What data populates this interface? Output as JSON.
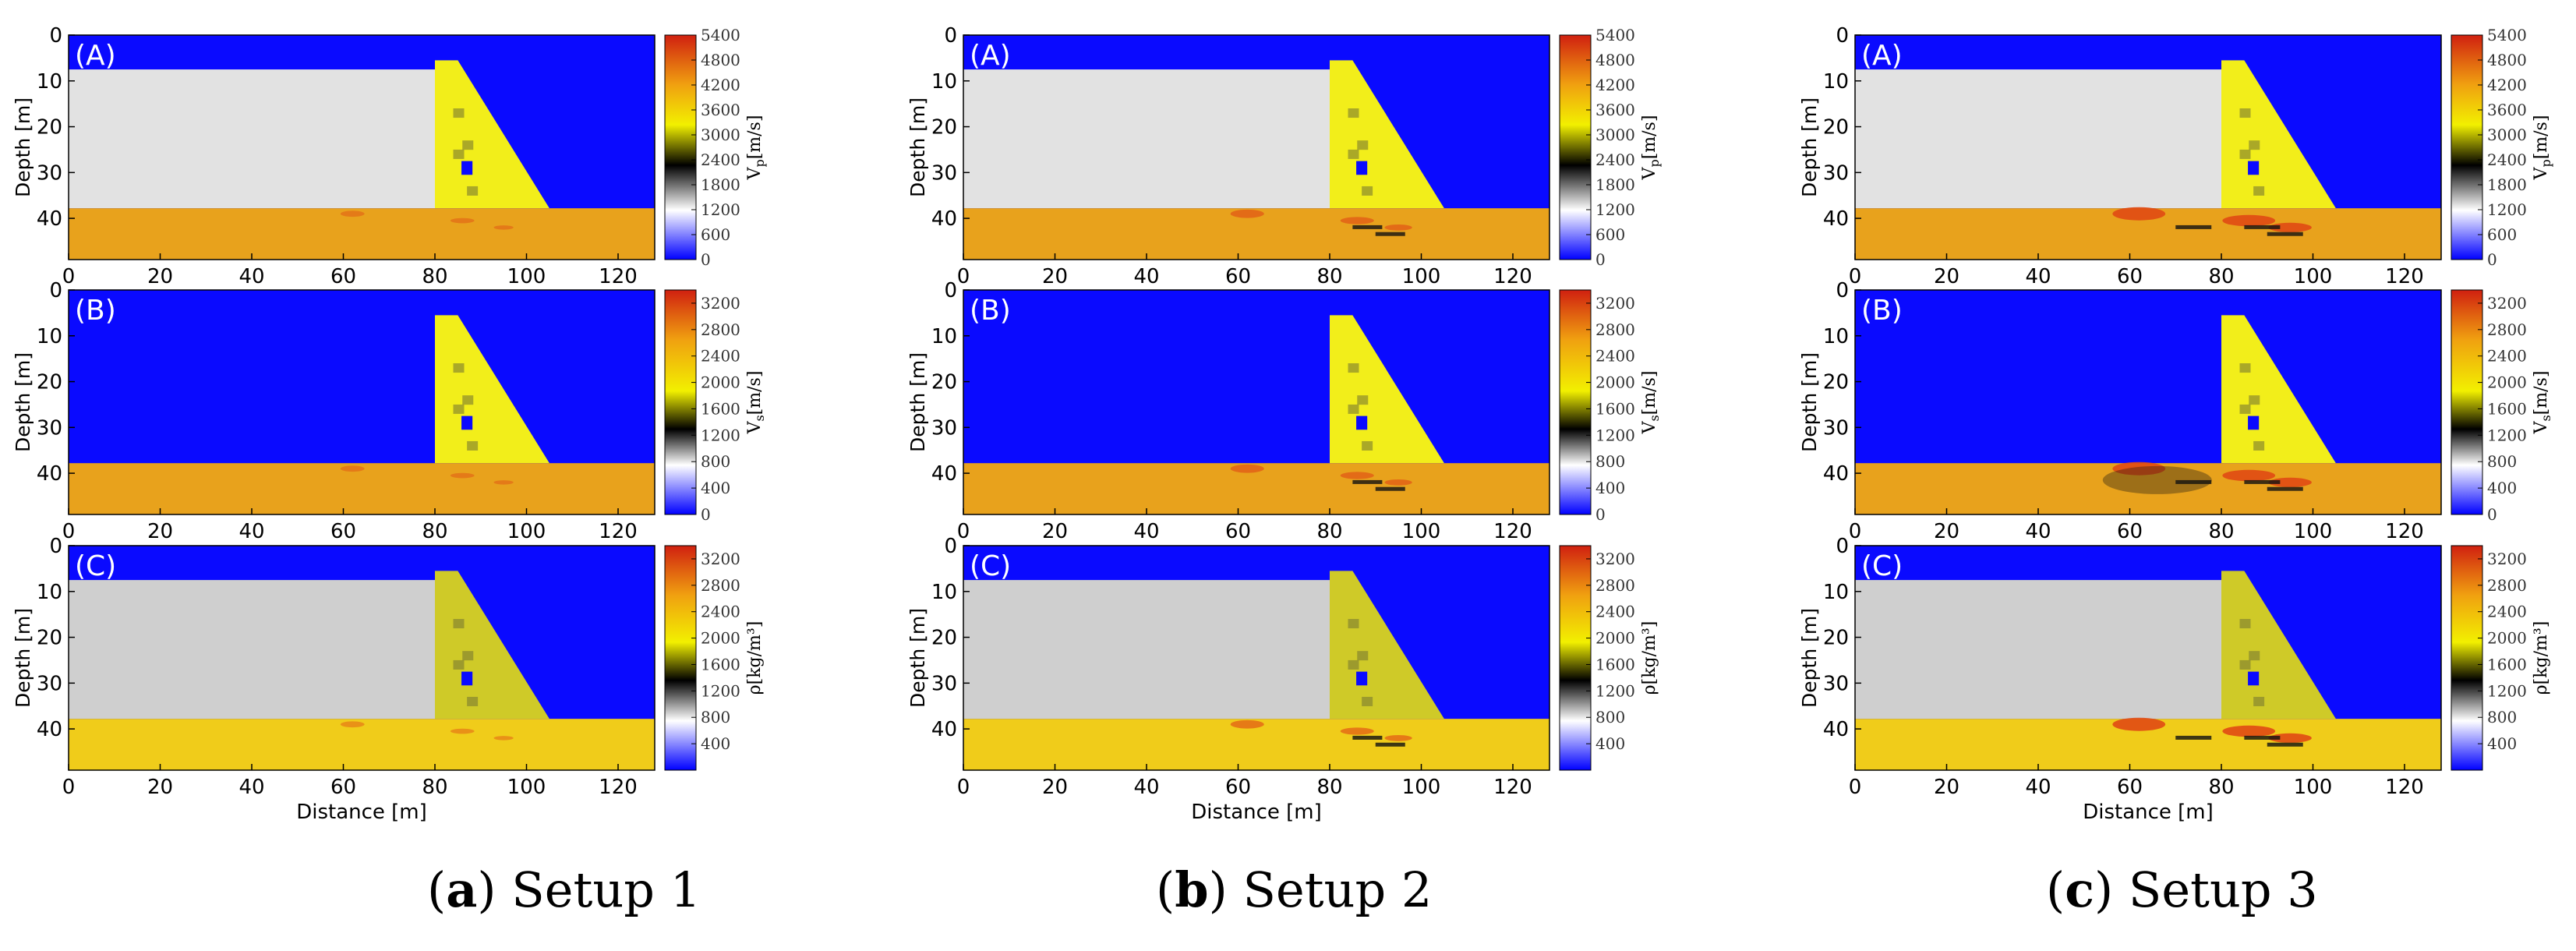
{
  "chart_data": {
    "type": "heatmap",
    "description_rows": [
      "A",
      "B",
      "C"
    ],
    "x_ticks": [
      "0",
      "20",
      "40",
      "60",
      "80",
      "100",
      "120"
    ],
    "y_ticks": [
      "0",
      "10",
      "20",
      "30",
      "40"
    ],
    "x_range": [
      0,
      128
    ],
    "y_range": [
      0,
      49
    ],
    "xlabel": "Distance [m]",
    "ylabel": "Depth [m]",
    "panel_letters": [
      "(A)",
      "(B)",
      "(C)"
    ],
    "colorbars": [
      {
        "label_main": "V",
        "label_sub": "p",
        "label_unit": "[m/s]",
        "ticks": [
          "5400",
          "4800",
          "4200",
          "3600",
          "3000",
          "2400",
          "1800",
          "1200",
          "600",
          "0"
        ],
        "range": [
          0,
          5400
        ]
      },
      {
        "label_main": "V",
        "label_sub": "s",
        "label_unit": "[m/s]",
        "ticks": [
          "3200",
          "2800",
          "2400",
          "2000",
          "1600",
          "1200",
          "800",
          "400",
          "0"
        ],
        "range": [
          0,
          3400
        ]
      },
      {
        "label_main": "ρ",
        "label_sub": "",
        "label_unit": "[kg/m³]",
        "ticks": [
          "3200",
          "2800",
          "2400",
          "2000",
          "1600",
          "1200",
          "800",
          "400"
        ],
        "range": [
          0,
          3400
        ]
      }
    ],
    "setups": [
      {
        "caption_letter": "a",
        "caption_text": "Setup 1"
      },
      {
        "caption_letter": "b",
        "caption_text": "Setup 2"
      },
      {
        "caption_letter": "c",
        "caption_text": "Setup 3"
      }
    ],
    "model": {
      "water_top_depth": 7.5,
      "subsurface_top_depth": 37.8,
      "dam_left_x": 80,
      "dam_top_right_x": 85,
      "dam_base_right_x": 105,
      "gallery_x": [
        85.8,
        88.2
      ],
      "gallery_y": [
        27.5,
        30.5
      ]
    },
    "colors": {
      "water_blue": "#0a0aff",
      "reservoir_gray": "#e2e2e2",
      "reservoir_gray_c": "#cfcfcf",
      "dam_yellow": "#f2ee1a",
      "dam_olive": "#cfca28",
      "subsurface_orange": "#e8a21c",
      "subsurface_yellow": "#f0cc1a",
      "anomaly_red": "#e04a14"
    }
  }
}
